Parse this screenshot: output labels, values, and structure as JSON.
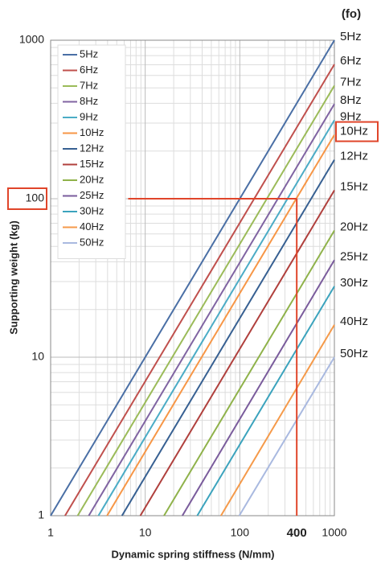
{
  "chart_data": {
    "type": "line",
    "x_label": "Dynamic spring stiffness (N/mm)",
    "y_label": "Supporting weight (kg)",
    "right_header": "(fo)",
    "log_x": true,
    "log_y": true,
    "grid": true,
    "minor_grid": true,
    "xlim": [
      1,
      1000
    ],
    "ylim": [
      1,
      1000
    ],
    "xticks": [
      1,
      10,
      100,
      1000
    ],
    "yticks": [
      1,
      10,
      100,
      1000
    ],
    "legend": "upper left",
    "series": [
      {
        "name": "5Hz",
        "color": "#4a6fa5",
        "x": [
          1,
          1000
        ],
        "values": [
          1,
          1000
        ]
      },
      {
        "name": "6Hz",
        "color": "#c0504d",
        "x": [
          1.42,
          1000
        ],
        "values": [
          1,
          704
        ]
      },
      {
        "name": "7Hz",
        "color": "#9bbb59",
        "x": [
          1.93,
          1000
        ],
        "values": [
          1,
          517
        ]
      },
      {
        "name": "8Hz",
        "color": "#8064a2",
        "x": [
          2.53,
          1000
        ],
        "values": [
          1,
          396
        ]
      },
      {
        "name": "9Hz",
        "color": "#4bacc6",
        "x": [
          3.2,
          1000
        ],
        "values": [
          1,
          313
        ]
      },
      {
        "name": "10Hz",
        "color": "#f79646",
        "x": [
          3.95,
          1000
        ],
        "values": [
          1,
          253
        ]
      },
      {
        "name": "12Hz",
        "color": "#376092",
        "x": [
          5.68,
          1000
        ],
        "values": [
          1,
          176
        ]
      },
      {
        "name": "15Hz",
        "color": "#b0403d",
        "x": [
          8.88,
          1000
        ],
        "values": [
          1,
          113
        ]
      },
      {
        "name": "20Hz",
        "color": "#8fb24a",
        "x": [
          15.8,
          1000
        ],
        "values": [
          1,
          63
        ]
      },
      {
        "name": "25Hz",
        "color": "#7a5c9c",
        "x": [
          24.7,
          1000
        ],
        "values": [
          1,
          41
        ]
      },
      {
        "name": "30Hz",
        "color": "#3ba3bd",
        "x": [
          35.5,
          1000
        ],
        "values": [
          1,
          28
        ]
      },
      {
        "name": "40Hz",
        "color": "#f59a4a",
        "x": [
          63.2,
          1000
        ],
        "values": [
          1,
          16
        ]
      },
      {
        "name": "50Hz",
        "color": "#a9b9e0",
        "x": [
          98.7,
          1000
        ],
        "values": [
          1,
          10
        ]
      }
    ],
    "annotation": {
      "x": 400,
      "x_label": "400",
      "y": 100,
      "x_start": 6.6,
      "color": "#e0452a",
      "highlight_series": "10Hz"
    }
  }
}
